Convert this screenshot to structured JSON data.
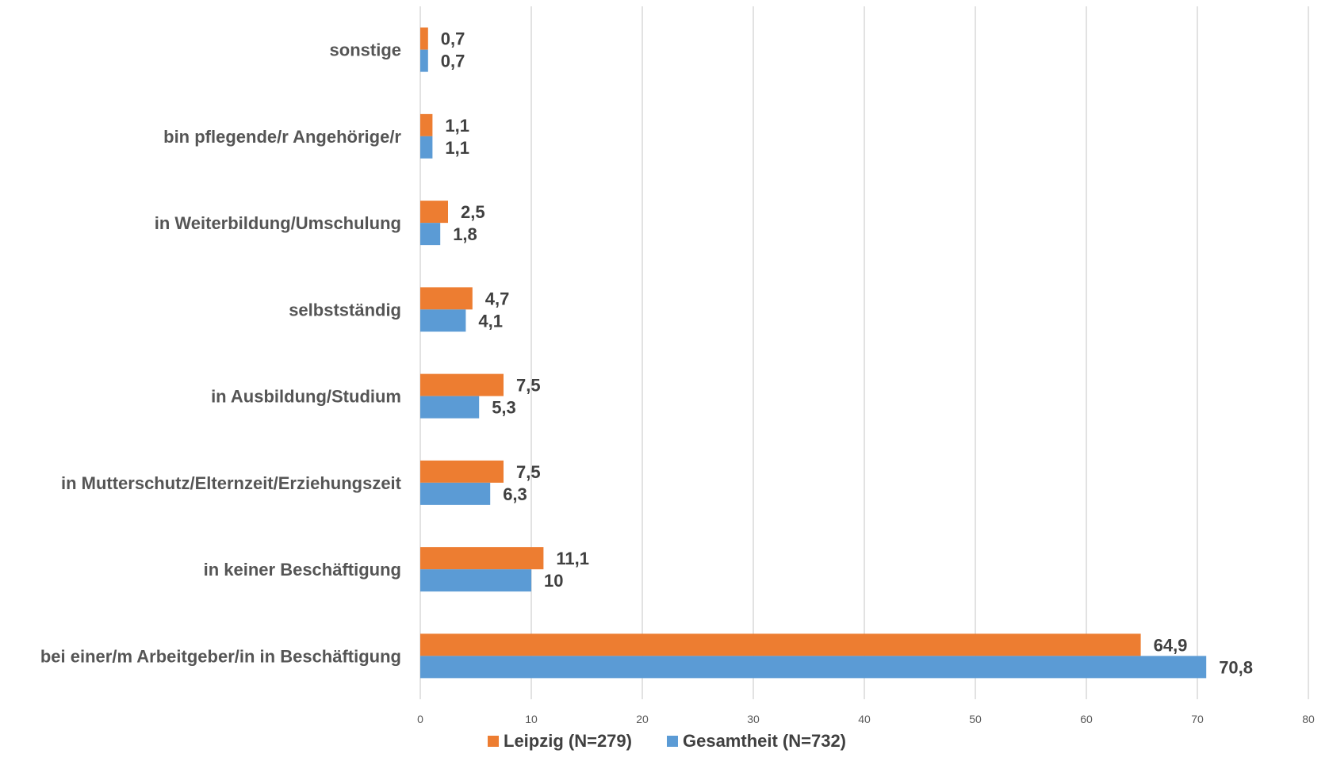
{
  "chart_data": {
    "type": "bar",
    "orientation": "horizontal",
    "title": "",
    "xlabel": "",
    "ylabel": "",
    "xlim": [
      0,
      80
    ],
    "ticks": [
      0,
      10,
      20,
      30,
      40,
      50,
      60,
      70,
      80
    ],
    "grid": true,
    "legend_position": "bottom",
    "categories": [
      "sonstige",
      "bin pflegende/r Angehörige/r",
      "in Weiterbildung/Umschulung",
      "selbstständig",
      "in Ausbildung/Studium",
      "in Mutterschutz/Elternzeit/Erziehungszeit",
      "in keiner Beschäftigung",
      "bei einer/m Arbeitgeber/in in Beschäftigung"
    ],
    "series": [
      {
        "name": "Leipzig (N=279)",
        "color": "#ed7d31",
        "values": [
          0.7,
          1.1,
          2.5,
          4.7,
          7.5,
          7.5,
          11.1,
          64.9
        ],
        "labels": [
          "0,7",
          "1,1",
          "2,5",
          "4,7",
          "7,5",
          "7,5",
          "11,1",
          "64,9"
        ]
      },
      {
        "name": "Gesamtheit (N=732)",
        "color": "#5b9bd5",
        "values": [
          0.7,
          1.1,
          1.8,
          4.1,
          5.3,
          6.3,
          10,
          70.8
        ],
        "labels": [
          "0,7",
          "1,1",
          "1,8",
          "4,1",
          "5,3",
          "6,3",
          "10",
          "70,8"
        ]
      }
    ]
  }
}
